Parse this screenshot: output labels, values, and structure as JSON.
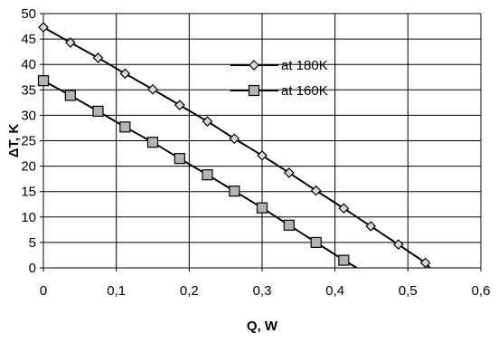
{
  "chart_data": {
    "type": "line",
    "title": "",
    "xlabel": "Q, W",
    "ylabel": "ΔT, K",
    "xlim": [
      0,
      0.6
    ],
    "ylim": [
      0,
      50
    ],
    "x_ticks": [
      "0",
      "0,1",
      "0,2",
      "0,3",
      "0,4",
      "0,5",
      "0,6"
    ],
    "y_ticks": [
      "0",
      "5",
      "10",
      "15",
      "20",
      "25",
      "30",
      "35",
      "40",
      "45",
      "50"
    ],
    "grid": {
      "x": true,
      "y": true
    },
    "legend_position": "upper-right",
    "series": [
      {
        "name": "at 180K",
        "marker": "diamond",
        "color": "#000000",
        "marker_fill": "#d9d9d9",
        "points": [
          [
            0.0,
            47.3
          ],
          [
            0.037,
            44.3
          ],
          [
            0.075,
            41.3
          ],
          [
            0.112,
            38.2
          ],
          [
            0.15,
            35.1
          ],
          [
            0.187,
            32.0
          ],
          [
            0.225,
            28.8
          ],
          [
            0.262,
            25.4
          ],
          [
            0.3,
            22.1
          ],
          [
            0.337,
            18.7
          ],
          [
            0.374,
            15.2
          ],
          [
            0.412,
            11.7
          ],
          [
            0.449,
            8.2
          ],
          [
            0.487,
            4.6
          ],
          [
            0.524,
            1.0
          ]
        ],
        "line_end": [
          0.53,
          0.0
        ]
      },
      {
        "name": "at 160K",
        "marker": "square",
        "color": "#000000",
        "marker_fill": "#b3b3b3",
        "points": [
          [
            0.0,
            36.8
          ],
          [
            0.037,
            33.9
          ],
          [
            0.075,
            30.8
          ],
          [
            0.112,
            27.7
          ],
          [
            0.15,
            24.7
          ],
          [
            0.187,
            21.5
          ],
          [
            0.225,
            18.3
          ],
          [
            0.262,
            15.1
          ],
          [
            0.3,
            11.8
          ],
          [
            0.337,
            8.4
          ],
          [
            0.374,
            5.0
          ],
          [
            0.412,
            1.5
          ]
        ],
        "line_end": [
          0.43,
          0.0
        ]
      }
    ]
  }
}
